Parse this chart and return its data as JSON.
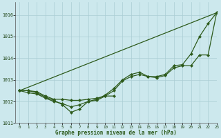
{
  "background_color": "#cce8ed",
  "grid_color": "#aacdd4",
  "line_color": "#2d5a1b",
  "xlabel": "Graphe pression niveau de la mer (hPa)",
  "xlim": [
    -0.5,
    23
  ],
  "ylim": [
    1011.0,
    1016.6
  ],
  "yticks": [
    1011,
    1012,
    1013,
    1014,
    1015,
    1016
  ],
  "xticks": [
    0,
    1,
    2,
    3,
    4,
    5,
    6,
    7,
    8,
    9,
    10,
    11,
    12,
    13,
    14,
    15,
    16,
    17,
    18,
    19,
    20,
    21,
    22,
    23
  ],
  "series": {
    "line_straight": {
      "x": [
        0,
        23
      ],
      "y": [
        1012.5,
        1016.1
      ]
    },
    "line_upper": {
      "x": [
        0,
        1,
        2,
        3,
        4,
        5,
        6,
        7,
        8,
        9,
        10,
        11,
        12,
        13,
        14,
        15,
        16,
        17,
        18,
        19,
        20,
        21,
        22,
        23
      ],
      "y": [
        1012.5,
        1012.5,
        1012.4,
        1012.2,
        1012.05,
        1011.85,
        1011.5,
        1011.65,
        1012.0,
        1012.1,
        1012.3,
        1012.6,
        1013.0,
        1013.25,
        1013.35,
        1013.15,
        1013.15,
        1013.25,
        1013.65,
        1013.7,
        1014.2,
        1015.0,
        1015.6,
        1016.1
      ]
    },
    "line_middle": {
      "x": [
        0,
        1,
        2,
        3,
        4,
        5,
        6,
        7,
        8,
        9,
        10,
        11,
        12,
        13,
        14,
        15,
        16,
        17,
        18,
        19,
        20,
        21,
        22,
        23
      ],
      "y": [
        1012.5,
        1012.4,
        1012.35,
        1012.15,
        1012.0,
        1011.9,
        1011.75,
        1011.85,
        1012.0,
        1012.05,
        1012.25,
        1012.5,
        1012.95,
        1013.15,
        1013.25,
        1013.15,
        1013.1,
        1013.2,
        1013.55,
        1013.65,
        1013.65,
        1014.15,
        1014.15,
        1016.1
      ]
    },
    "line_flat": {
      "x": [
        0,
        1,
        2,
        3,
        4,
        5,
        6,
        7,
        8,
        9,
        10,
        11
      ],
      "y": [
        1012.5,
        1012.5,
        1012.45,
        1012.25,
        1012.1,
        1012.1,
        1012.05,
        1012.05,
        1012.1,
        1012.15,
        1012.25,
        1012.25
      ]
    }
  },
  "marker": "D",
  "marker_size": 2.2,
  "linewidth": 0.9
}
